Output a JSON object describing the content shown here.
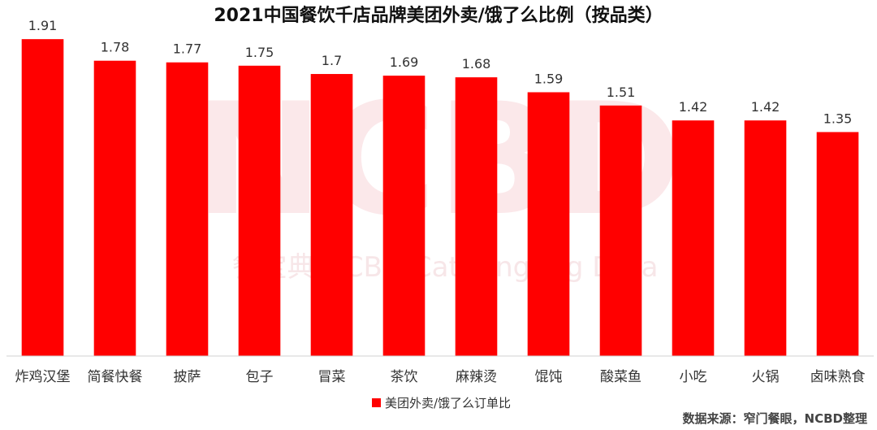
{
  "chart_data": {
    "type": "bar",
    "title": "2021中国餐饮千店品牌美团外卖/饿了么比例（按品类）",
    "categories": [
      "炸鸡汉堡",
      "简餐快餐",
      "披萨",
      "包子",
      "冒菜",
      "茶饮",
      "麻辣烫",
      "馄饨",
      "酸菜鱼",
      "小吃",
      "火锅",
      "卤味熟食"
    ],
    "series": [
      {
        "name": "美团外卖/饿了么订单比",
        "values": [
          1.91,
          1.78,
          1.77,
          1.75,
          1.7,
          1.69,
          1.68,
          1.59,
          1.51,
          1.42,
          1.42,
          1.35
        ]
      }
    ],
    "value_labels": [
      "1.91",
      "1.78",
      "1.77",
      "1.75",
      "1.7",
      "1.69",
      "1.68",
      "1.59",
      "1.51",
      "1.42",
      "1.42",
      "1.35"
    ],
    "xlabel": "",
    "ylabel": "",
    "ylim": [
      0,
      1.95
    ],
    "grid": false,
    "legend_position": "bottom-center",
    "bar_color": "#ff0000"
  },
  "source_note": "数据来源：窄门餐眼，NCBD整理",
  "watermark": {
    "main": "NCBD",
    "sub": "餐宝典 NCBD Catering Big Data"
  }
}
